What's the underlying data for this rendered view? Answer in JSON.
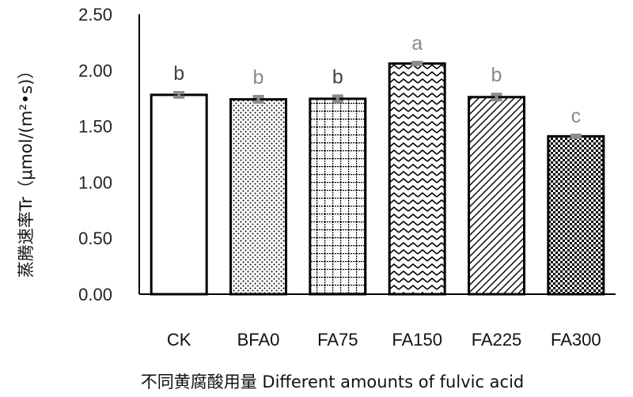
{
  "chart_data": {
    "type": "bar",
    "categories": [
      "CK",
      "BFA0",
      "FA75",
      "FA150",
      "FA225",
      "FA300"
    ],
    "values": [
      1.78,
      1.74,
      1.745,
      2.06,
      1.76,
      1.41
    ],
    "errors": [
      0.02,
      0.025,
      0.025,
      0.01,
      0.025,
      0.01
    ],
    "significance": [
      "b",
      "b",
      "b",
      "a",
      "b",
      "c"
    ],
    "significance_colors": [
      "#444444",
      "#8a8a8a",
      "#444444",
      "#8a8a8a",
      "#8a8a8a",
      "#8a8a8a"
    ],
    "patterns": [
      "solid-white",
      "dots",
      "grid",
      "zigzag",
      "diagonal",
      "checker"
    ],
    "ylabel": "蒸腾速率Tr（μmol/(m²•s)）",
    "xlabel": "不同黄腐酸用量 Different amounts of fulvic acid",
    "ylim": [
      0,
      2.5
    ],
    "yticks": [
      "0.00",
      "0.50",
      "1.00",
      "1.50",
      "2.00",
      "2.50"
    ],
    "grid": false,
    "bar_edge_color": "#000000",
    "errorbar_color": "#8c8c8c"
  }
}
